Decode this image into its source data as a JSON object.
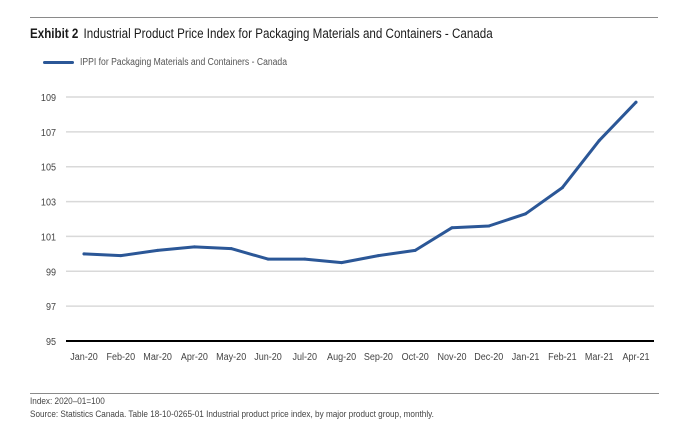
{
  "exhibit_label": "Exhibit 2",
  "title": "Industrial Product Price Index for Packaging Materials and Containers - Canada",
  "colors": {
    "series": "#2b5797",
    "grid": "#d9d9d9",
    "axis": "#000000"
  },
  "footnotes": {
    "index": "Index: 2020–01=100",
    "source": "Source: Statistics Canada. Table 18-10-0265-01 Industrial product price index, by major product group, monthly."
  },
  "chart_data": {
    "type": "line",
    "title": "Industrial Product Price Index for Packaging Materials and Containers - Canada",
    "xlabel": "",
    "ylabel": "",
    "categories": [
      "Jan-20",
      "Feb-20",
      "Mar-20",
      "Apr-20",
      "May-20",
      "Jun-20",
      "Jul-20",
      "Aug-20",
      "Sep-20",
      "Oct-20",
      "Nov-20",
      "Dec-20",
      "Jan-21",
      "Feb-21",
      "Mar-21",
      "Apr-21"
    ],
    "series": [
      {
        "name": "IPPI for Packaging Materials and Containers - Canada",
        "values": [
          100.0,
          99.9,
          100.2,
          100.4,
          100.3,
          99.7,
          99.7,
          99.5,
          99.9,
          100.2,
          101.5,
          101.6,
          102.3,
          103.8,
          106.5,
          108.7
        ]
      }
    ],
    "ylim": [
      95,
      109
    ],
    "yticks": [
      95,
      97,
      99,
      101,
      103,
      105,
      107,
      109
    ],
    "grid": true,
    "legend_position": "top-left"
  }
}
